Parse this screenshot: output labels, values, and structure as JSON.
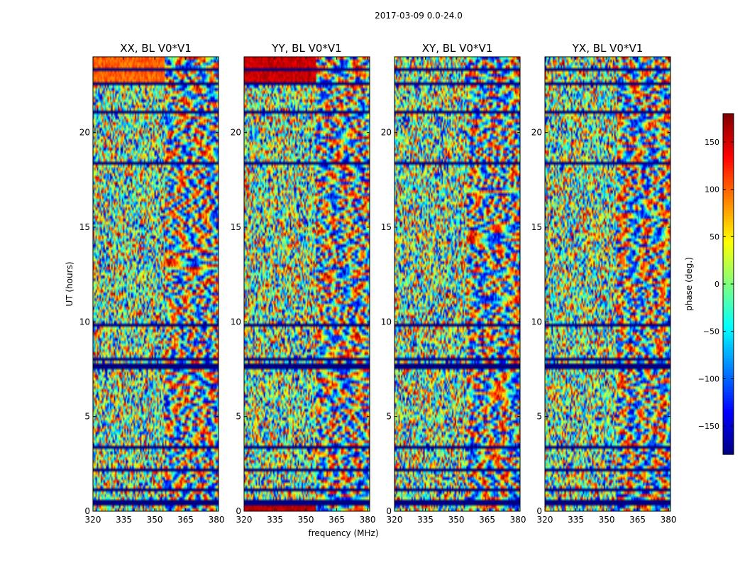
{
  "figure": {
    "suptitle": "2017-03-09 0.0-24.0"
  },
  "chart_data": {
    "type": "heatmap",
    "xlabel": "frequency (MHz)",
    "ylabel": "UT (hours)",
    "xlim": [
      320,
      381
    ],
    "ylim": [
      0,
      24
    ],
    "xticks": [
      320,
      335,
      350,
      365,
      380
    ],
    "yticks": [
      0,
      5,
      10,
      15,
      20
    ],
    "panels": [
      {
        "title": "XX, BL V0*V1"
      },
      {
        "title": "YY, BL V0*V1"
      },
      {
        "title": "XY, BL V0*V1"
      },
      {
        "title": "YX, BL V0*V1"
      }
    ],
    "colorbar": {
      "label": "phase (deg.)",
      "range": [
        -180,
        180
      ],
      "ticks": [
        -150,
        -100,
        -50,
        0,
        50,
        100,
        150
      ],
      "colormap": "jet"
    },
    "note": "Wrapped visibility phase vs frequency and UT; pixels show noisy phase with fringe patterns and horizontal flagged (dark blue) bands."
  },
  "colors": {
    "jet_low": "#00007f",
    "jet_mid": "#7fff7f",
    "jet_high": "#7f0000",
    "flagged": "#00007f"
  }
}
